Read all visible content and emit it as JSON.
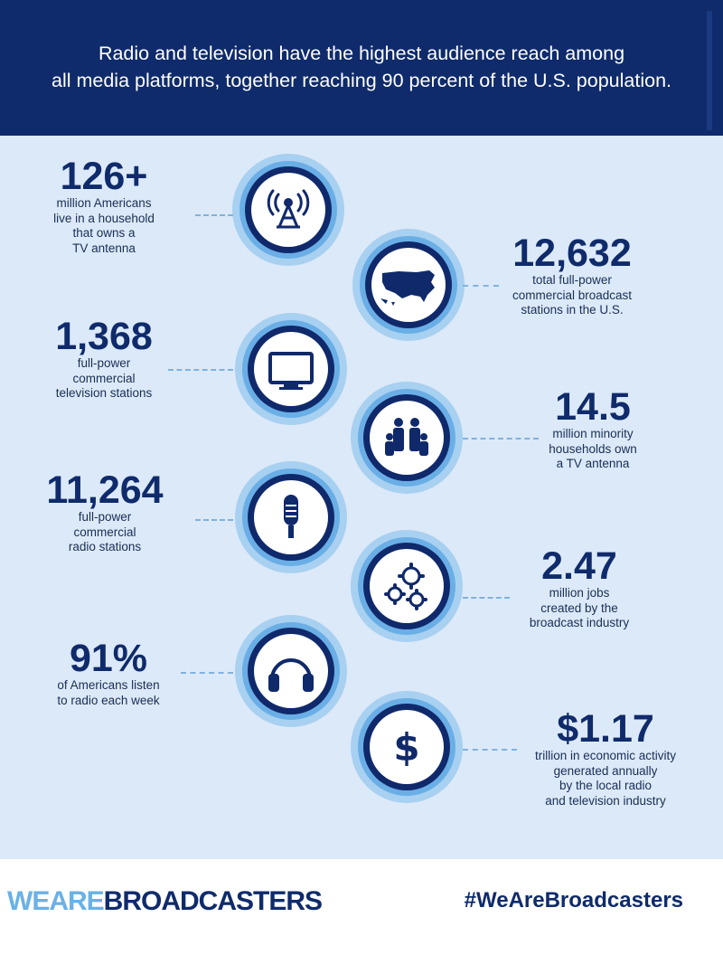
{
  "headline": {
    "line1": "Radio and television have the highest audience reach among",
    "line2": "all media platforms, together reaching 90 percent of the U.S. population."
  },
  "stats": [
    {
      "number": "126+",
      "lines": [
        "million Americans",
        "live in a household",
        "that owns a",
        "TV antenna"
      ],
      "icon": "antenna-icon"
    },
    {
      "number": "12,632",
      "lines": [
        "total full-power",
        "commercial broadcast",
        "stations in the U.S."
      ],
      "icon": "us-map-icon"
    },
    {
      "number": "1,368",
      "lines": [
        "full-power",
        "commercial",
        "television stations"
      ],
      "icon": "television-icon"
    },
    {
      "number": "14.5",
      "lines": [
        "million minority",
        "households own",
        "a TV antenna"
      ],
      "icon": "family-icon"
    },
    {
      "number": "11,264",
      "lines": [
        "full-power",
        "commercial",
        "radio stations"
      ],
      "icon": "microphone-icon"
    },
    {
      "number": "2.47",
      "lines": [
        "million jobs",
        "created by the",
        "broadcast industry"
      ],
      "icon": "gears-icon"
    },
    {
      "number": "91%",
      "lines": [
        "of Americans listen",
        "to radio each week"
      ],
      "icon": "headphones-icon"
    },
    {
      "number": "$1.17",
      "lines": [
        "trillion in economic activity",
        "generated annually",
        "by the local radio",
        "and television industry"
      ],
      "icon": "dollar-icon"
    }
  ],
  "footer": {
    "logo_we": "WEARE",
    "logo_br": "BROADCASTERS",
    "hashtag": "#WeAreBroadcasters"
  },
  "colors": {
    "navy": "#0f2b6b",
    "panel": "#dce9f8",
    "light_blue": "#6aaee6"
  }
}
